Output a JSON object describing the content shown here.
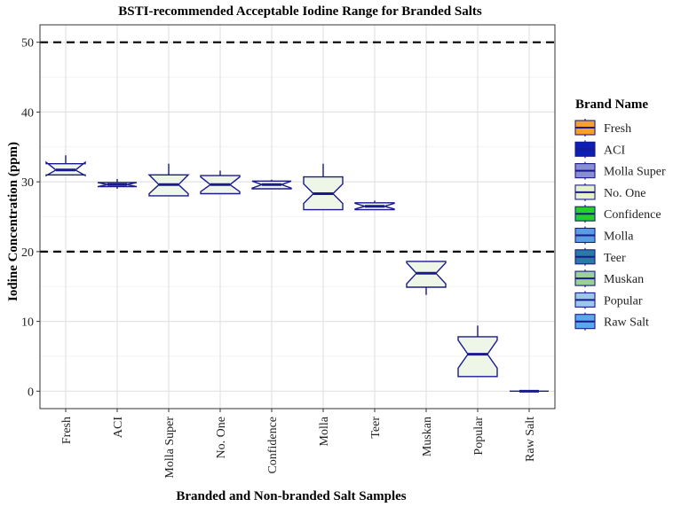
{
  "chart_data": {
    "type": "boxplot",
    "title": "BSTI-recommended Acceptable Iodine Range for Branded Salts",
    "xlabel": "Branded and Non-branded Salt Samples",
    "ylabel": "Iodine Concentration (ppm)",
    "ylim": [
      -2.5,
      52.5
    ],
    "yticks": [
      0,
      10,
      20,
      30,
      40,
      50
    ],
    "reference_lines": [
      20,
      50
    ],
    "grid": true,
    "legend": {
      "title": "Brand Name",
      "position": "right"
    },
    "boxes": [
      {
        "name": "Fresh",
        "whisker_low": 31.0,
        "q1": 31.0,
        "median": 31.7,
        "q3": 32.6,
        "whisker_high": 33.8,
        "notch": [
          30.9,
          32.8
        ],
        "fill": "#f4a02a"
      },
      {
        "name": "ACI",
        "whisker_low": 29.0,
        "q1": 29.3,
        "median": 29.6,
        "q3": 29.9,
        "whisker_high": 30.4,
        "notch": [
          29.3,
          29.9
        ],
        "fill": "#0b1fb5"
      },
      {
        "name": "Molla Super",
        "whisker_low": 28.0,
        "q1": 28.0,
        "median": 29.6,
        "q3": 31.0,
        "whisker_high": 32.6,
        "notch": [
          28.3,
          31.0
        ],
        "fill": "#8a8fd4"
      },
      {
        "name": "No. One",
        "whisker_low": 28.3,
        "q1": 28.3,
        "median": 29.6,
        "q3": 30.9,
        "whisker_high": 31.6,
        "notch": [
          28.6,
          30.7
        ],
        "fill": "#e6f3c9"
      },
      {
        "name": "Confidence",
        "whisker_low": 29.0,
        "q1": 29.0,
        "median": 29.6,
        "q3": 30.1,
        "whisker_high": 30.3,
        "notch": [
          29.1,
          30.1
        ],
        "fill": "#22d12a"
      },
      {
        "name": "Molla",
        "whisker_low": 26.0,
        "q1": 26.0,
        "median": 28.3,
        "q3": 30.7,
        "whisker_high": 32.6,
        "notch": [
          26.9,
          29.7
        ],
        "fill": "#5b9ee0"
      },
      {
        "name": "Teer",
        "whisker_low": 26.0,
        "q1": 26.0,
        "median": 26.5,
        "q3": 27.0,
        "whisker_high": 27.3,
        "notch": [
          26.1,
          26.9
        ],
        "fill": "#2a7aa6"
      },
      {
        "name": "Muskan",
        "whisker_low": 13.8,
        "q1": 14.9,
        "median": 16.9,
        "q3": 18.6,
        "whisker_high": 18.6,
        "notch": [
          15.4,
          18.4
        ],
        "fill": "#9ad197"
      },
      {
        "name": "Popular",
        "whisker_low": 2.1,
        "q1": 2.1,
        "median": 5.3,
        "q3": 7.8,
        "whisker_high": 9.4,
        "notch": [
          3.3,
          7.3
        ],
        "fill": "#9cc8ec"
      },
      {
        "name": "Raw Salt",
        "whisker_low": 0.0,
        "q1": 0.0,
        "median": 0.0,
        "q3": 0.0,
        "whisker_high": 0.0,
        "notch": [
          0.0,
          0.0
        ],
        "fill": "#5ba8ef"
      }
    ]
  }
}
